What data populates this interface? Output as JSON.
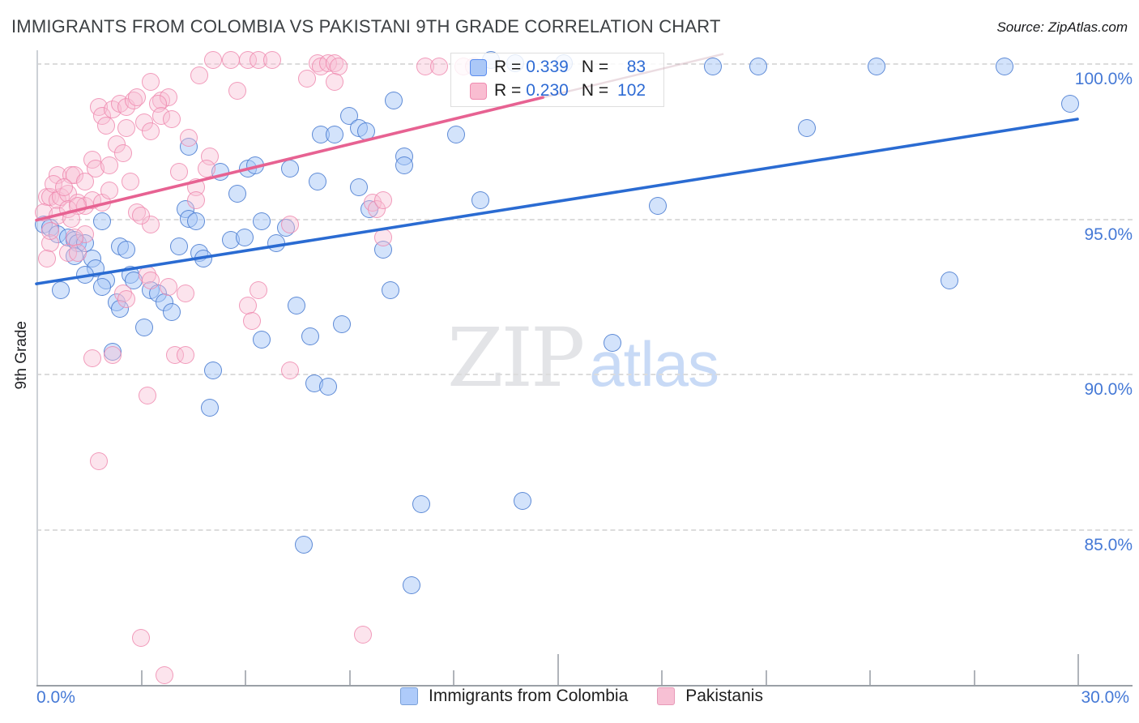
{
  "title": "IMMIGRANTS FROM COLOMBIA VS PAKISTANI 9TH GRADE CORRELATION CHART",
  "source": "Source: ZipAtlas.com",
  "watermark": {
    "zip": "ZIP",
    "atlas": "atlas"
  },
  "y_axis": {
    "label": "9th Grade",
    "tick_labels": [
      "100.0%",
      "95.0%",
      "90.0%",
      "85.0%"
    ],
    "tick_values": [
      100,
      95,
      90,
      85
    ]
  },
  "x_axis": {
    "min_label": "0.0%",
    "max_label": "30.0%",
    "min": 0,
    "max": 30,
    "minor_ticks": [
      3,
      6,
      9,
      12,
      18,
      21,
      24,
      27
    ],
    "major_ticks": [
      15,
      30
    ]
  },
  "legend_box": {
    "rows": [
      {
        "series": "Immigrants from Colombia",
        "r_label": "R =",
        "r_value": "0.339",
        "n_label": "N =",
        "n_value": "83"
      },
      {
        "series": "Pakistanis",
        "r_label": "R =",
        "r_value": "0.230",
        "n_label": "N =",
        "n_value": "102"
      }
    ]
  },
  "bottom_legend": [
    {
      "label": "Immigrants from Colombia",
      "color": "blue"
    },
    {
      "label": "Pakistanis",
      "color": "pink"
    }
  ],
  "colors": {
    "blue_fill": "rgba(167,200,248,0.5)",
    "blue_stroke": "#4074cd",
    "blue_trend": "#2a6bd2",
    "pink_fill": "rgba(249,190,211,0.42)",
    "pink_stroke": "#ee82aa",
    "pink_trend": "#e76292",
    "pink_trend_faded": "rgba(205,168,180,0.4)",
    "accent_text": "#4579d6",
    "grid": "#dcdcdc",
    "axis": "#9aa0a6",
    "title_text": "#3c4043"
  },
  "chart_data": {
    "type": "scatter",
    "xlabel": "",
    "ylabel": "9th Grade",
    "xlim": [
      0,
      30
    ],
    "ylim": [
      80,
      100.5
    ],
    "x_unit": "%",
    "y_unit": "%",
    "grid": "dashed horizontal at 85, 90, 95, 100",
    "legend_position": "top-center box and bottom-center row",
    "series": [
      {
        "name": "Immigrants from Colombia",
        "R": 0.339,
        "N": 83,
        "points": [
          [
            4.4,
            97.3
          ],
          [
            8.2,
            97.7
          ],
          [
            8.6,
            97.7
          ],
          [
            9.0,
            98.3
          ],
          [
            9.3,
            97.9
          ],
          [
            9.5,
            97.8
          ],
          [
            5.3,
            96.5
          ],
          [
            6.1,
            96.6
          ],
          [
            6.3,
            96.7
          ],
          [
            7.3,
            96.6
          ],
          [
            8.1,
            96.2
          ],
          [
            9.3,
            96.0
          ],
          [
            9.6,
            95.3
          ],
          [
            5.8,
            95.8
          ],
          [
            4.3,
            95.3
          ],
          [
            4.4,
            95.0
          ],
          [
            4.6,
            94.9
          ],
          [
            6.5,
            94.9
          ],
          [
            7.2,
            94.7
          ],
          [
            1.9,
            94.9
          ],
          [
            0.2,
            94.8
          ],
          [
            0.4,
            94.7
          ],
          [
            0.6,
            94.5
          ],
          [
            0.9,
            94.4
          ],
          [
            1.1,
            94.3
          ],
          [
            1.2,
            94.2
          ],
          [
            1.4,
            94.2
          ],
          [
            1.1,
            93.8
          ],
          [
            2.4,
            94.1
          ],
          [
            2.6,
            94.0
          ],
          [
            4.1,
            94.1
          ],
          [
            4.7,
            93.9
          ],
          [
            4.8,
            93.7
          ],
          [
            5.6,
            94.3
          ],
          [
            6.0,
            94.4
          ],
          [
            6.9,
            94.2
          ],
          [
            1.6,
            93.7
          ],
          [
            1.7,
            93.4
          ],
          [
            0.7,
            92.7
          ],
          [
            1.4,
            93.2
          ],
          [
            2.0,
            93.0
          ],
          [
            1.9,
            92.8
          ],
          [
            2.7,
            93.2
          ],
          [
            2.8,
            93.0
          ],
          [
            2.3,
            92.3
          ],
          [
            2.4,
            92.1
          ],
          [
            3.3,
            92.7
          ],
          [
            3.5,
            92.6
          ],
          [
            3.7,
            92.3
          ],
          [
            3.9,
            92.0
          ],
          [
            3.1,
            91.5
          ],
          [
            6.5,
            91.1
          ],
          [
            7.5,
            92.2
          ],
          [
            7.9,
            91.2
          ],
          [
            8.8,
            91.6
          ],
          [
            2.2,
            90.7
          ],
          [
            5.1,
            90.1
          ],
          [
            13.1,
            100.1
          ],
          [
            13.8,
            100.0
          ],
          [
            15.2,
            100.0
          ],
          [
            19.5,
            99.9
          ],
          [
            10.3,
            98.8
          ],
          [
            12.1,
            97.7
          ],
          [
            10.6,
            97.0
          ],
          [
            10.6,
            96.7
          ],
          [
            12.8,
            95.6
          ],
          [
            17.9,
            95.4
          ],
          [
            10.0,
            94.0
          ],
          [
            10.2,
            92.7
          ],
          [
            16.6,
            91.0
          ],
          [
            20.8,
            99.9
          ],
          [
            24.2,
            99.9
          ],
          [
            27.9,
            99.9
          ],
          [
            29.8,
            98.7
          ],
          [
            22.2,
            97.9
          ],
          [
            26.3,
            93.0
          ],
          [
            8.0,
            89.7
          ],
          [
            8.4,
            89.6
          ],
          [
            5.0,
            88.9
          ],
          [
            7.7,
            84.5
          ],
          [
            11.1,
            85.8
          ],
          [
            14.0,
            85.9
          ],
          [
            10.8,
            83.2
          ]
        ]
      },
      {
        "name": "Pakistanis",
        "R": 0.23,
        "N": 102,
        "points": [
          [
            5.1,
            100.1
          ],
          [
            5.6,
            100.1
          ],
          [
            6.1,
            100.1
          ],
          [
            6.4,
            100.1
          ],
          [
            6.8,
            100.1
          ],
          [
            8.1,
            100.0
          ],
          [
            8.2,
            99.9
          ],
          [
            8.4,
            100.0
          ],
          [
            8.6,
            100.0
          ],
          [
            8.7,
            99.9
          ],
          [
            4.7,
            99.6
          ],
          [
            7.8,
            99.5
          ],
          [
            8.6,
            99.4
          ],
          [
            3.3,
            99.4
          ],
          [
            5.8,
            99.1
          ],
          [
            3.6,
            98.8
          ],
          [
            3.8,
            98.9
          ],
          [
            1.8,
            98.6
          ],
          [
            1.9,
            98.3
          ],
          [
            2.2,
            98.5
          ],
          [
            2.4,
            98.7
          ],
          [
            2.6,
            98.6
          ],
          [
            2.8,
            98.8
          ],
          [
            2.9,
            98.9
          ],
          [
            3.5,
            98.7
          ],
          [
            3.6,
            98.3
          ],
          [
            3.9,
            98.2
          ],
          [
            2.6,
            97.9
          ],
          [
            3.1,
            98.1
          ],
          [
            3.3,
            97.8
          ],
          [
            4.4,
            97.6
          ],
          [
            2.3,
            97.4
          ],
          [
            2.5,
            97.1
          ],
          [
            5.0,
            97.0
          ],
          [
            4.9,
            96.6
          ],
          [
            1.6,
            96.9
          ],
          [
            1.7,
            96.6
          ],
          [
            2.1,
            96.7
          ],
          [
            0.6,
            96.4
          ],
          [
            1.0,
            96.4
          ],
          [
            1.1,
            96.4
          ],
          [
            1.4,
            96.2
          ],
          [
            2.7,
            96.2
          ],
          [
            4.1,
            96.5
          ],
          [
            4.6,
            96.0
          ],
          [
            4.6,
            95.6
          ],
          [
            0.3,
            95.7
          ],
          [
            0.4,
            95.7
          ],
          [
            0.6,
            95.6
          ],
          [
            0.7,
            95.7
          ],
          [
            0.9,
            95.8
          ],
          [
            1.2,
            95.5
          ],
          [
            1.4,
            95.4
          ],
          [
            1.6,
            95.6
          ],
          [
            1.9,
            95.5
          ],
          [
            2.1,
            95.9
          ],
          [
            2.9,
            95.2
          ],
          [
            3.3,
            94.8
          ],
          [
            0.2,
            95.2
          ],
          [
            0.6,
            95.1
          ],
          [
            0.9,
            95.3
          ],
          [
            1.2,
            95.4
          ],
          [
            1.4,
            94.5
          ],
          [
            1.1,
            94.4
          ],
          [
            0.9,
            93.9
          ],
          [
            0.4,
            94.2
          ],
          [
            0.3,
            93.7
          ],
          [
            1.2,
            93.9
          ],
          [
            3.0,
            95.1
          ],
          [
            2.5,
            92.6
          ],
          [
            2.6,
            92.4
          ],
          [
            3.2,
            93.2
          ],
          [
            3.3,
            93.0
          ],
          [
            3.8,
            92.8
          ],
          [
            4.3,
            92.6
          ],
          [
            6.1,
            92.2
          ],
          [
            6.2,
            91.7
          ],
          [
            6.4,
            92.7
          ],
          [
            7.3,
            94.8
          ],
          [
            9.7,
            95.5
          ],
          [
            9.8,
            95.3
          ],
          [
            10.0,
            94.4
          ],
          [
            1.6,
            90.5
          ],
          [
            2.2,
            90.6
          ],
          [
            4.0,
            90.6
          ],
          [
            4.3,
            90.6
          ],
          [
            11.2,
            99.9
          ],
          [
            11.6,
            99.9
          ],
          [
            12.3,
            99.9
          ],
          [
            12.6,
            99.9
          ],
          [
            10.0,
            95.6
          ],
          [
            7.3,
            90.1
          ],
          [
            3.2,
            89.3
          ],
          [
            1.8,
            87.2
          ],
          [
            3.0,
            81.5
          ],
          [
            9.4,
            81.6
          ],
          [
            3.7,
            80.3
          ],
          [
            0.5,
            96.1
          ],
          [
            0.8,
            96.0
          ],
          [
            1.0,
            95.0
          ],
          [
            0.4,
            94.6
          ],
          [
            2.0,
            98.0
          ]
        ]
      }
    ],
    "trend_lines": [
      {
        "series": "Immigrants from Colombia",
        "x1": 0,
        "y1": 92.9,
        "x2": 30,
        "y2": 98.2
      },
      {
        "series": "Pakistanis",
        "x1": 0,
        "y1": 94.95,
        "x2": 14.6,
        "y2": 98.9,
        "faded_extension": {
          "x2": 19.8,
          "y2": 100.3
        }
      }
    ]
  }
}
